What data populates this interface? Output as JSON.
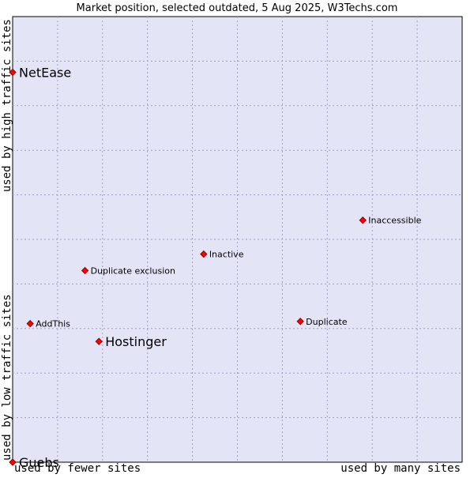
{
  "chart_data": {
    "type": "scatter",
    "title": "Market position, selected outdated, 5 Aug 2025, W3Techs.com",
    "x_axis": {
      "left_label": "used by fewer sites",
      "right_label": "used by many sites"
    },
    "y_axis": {
      "bottom_label": "used by low traffic sites",
      "top_label": "used by high traffic sites"
    },
    "xlim": [
      0,
      100
    ],
    "ylim": [
      0,
      100
    ],
    "grid": true,
    "points": [
      {
        "label": "NetEase",
        "x": 0.0,
        "y": 87.5,
        "size": "large"
      },
      {
        "label": "Inaccessible",
        "x": 77.9,
        "y": 54.3,
        "size": "small"
      },
      {
        "label": "Inactive",
        "x": 42.5,
        "y": 46.7,
        "size": "small"
      },
      {
        "label": "Duplicate exclusion",
        "x": 16.1,
        "y": 43.0,
        "size": "small"
      },
      {
        "label": "AddThis",
        "x": 3.9,
        "y": 31.1,
        "size": "small"
      },
      {
        "label": "Duplicate",
        "x": 64.0,
        "y": 31.6,
        "size": "small"
      },
      {
        "label": "Hostinger",
        "x": 19.2,
        "y": 27.1,
        "size": "large"
      },
      {
        "label": "Guebs",
        "x": 0.0,
        "y": 0.0,
        "size": "large"
      }
    ]
  },
  "colors": {
    "plot_background": "#e4e4f7",
    "grid": "#a0a0c8",
    "marker": "#ff0000",
    "marker_outline": "#990000",
    "text": "#000000"
  }
}
